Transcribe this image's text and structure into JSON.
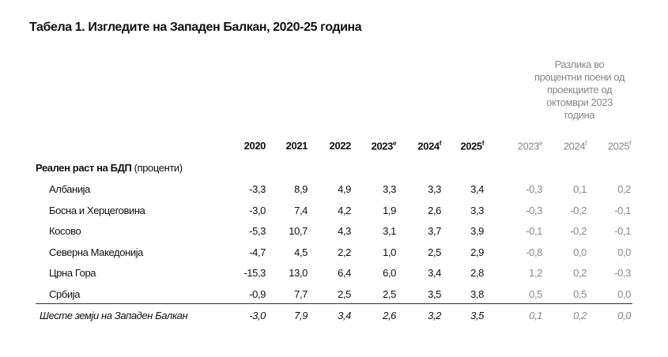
{
  "title": "Табела 1. Изгледите на Западен Балкан, 2020-25 година",
  "group_header": "Разлика во процентни поени од проекциите од октомври 2023 година",
  "columns": [
    {
      "year": "2020"
    },
    {
      "year": "2021"
    },
    {
      "year": "2022"
    },
    {
      "year": "2023",
      "note": "e"
    },
    {
      "year": "2024",
      "note": "f"
    },
    {
      "year": "2025",
      "note": "f"
    }
  ],
  "diff_columns": [
    {
      "year": "2023",
      "note": "e"
    },
    {
      "year": "2024",
      "note": "f"
    },
    {
      "year": "2025",
      "note": "f"
    }
  ],
  "section": {
    "label": "Реален раст на БДП",
    "unit": "(проценти)"
  },
  "rows": [
    {
      "label": "Албанија",
      "values": [
        "-3,3",
        "8,9",
        "4,9",
        "3,3",
        "3,3",
        "3,4"
      ],
      "diffs": [
        "-0,3",
        "0,1",
        "0,2"
      ]
    },
    {
      "label": "Босна и Херцеговина",
      "values": [
        "-3,0",
        "7,4",
        "4,2",
        "1,9",
        "2,6",
        "3,3"
      ],
      "diffs": [
        "-0,3",
        "-0,2",
        "-0,1"
      ]
    },
    {
      "label": "Косово",
      "values": [
        "-5,3",
        "10,7",
        "4,3",
        "3,1",
        "3,7",
        "3,9"
      ],
      "diffs": [
        "-0,1",
        "-0,2",
        "-0,1"
      ]
    },
    {
      "label": "Северна Македонија",
      "values": [
        "-4,7",
        "4,5",
        "2,2",
        "1,0",
        "2,5",
        "2,9"
      ],
      "diffs": [
        "-0,8",
        "0,0",
        "0,0"
      ]
    },
    {
      "label": "Црна Гора",
      "values": [
        "-15,3",
        "13,0",
        "6,4",
        "6,0",
        "3,4",
        "2,8"
      ],
      "diffs": [
        "1,2",
        "0,2",
        "-0,3"
      ]
    },
    {
      "label": "Србија",
      "values": [
        "-0,9",
        "7,7",
        "2,5",
        "2,5",
        "3,5",
        "3,8"
      ],
      "diffs": [
        "0,5",
        "0,5",
        "0,0"
      ]
    }
  ],
  "total": {
    "label": "Шесте земји на Западен Балкан",
    "values": [
      "-3,0",
      "7,9",
      "3,4",
      "2,6",
      "3,2",
      "3,5"
    ],
    "diffs": [
      "0,1",
      "0,2",
      "0,0"
    ]
  }
}
